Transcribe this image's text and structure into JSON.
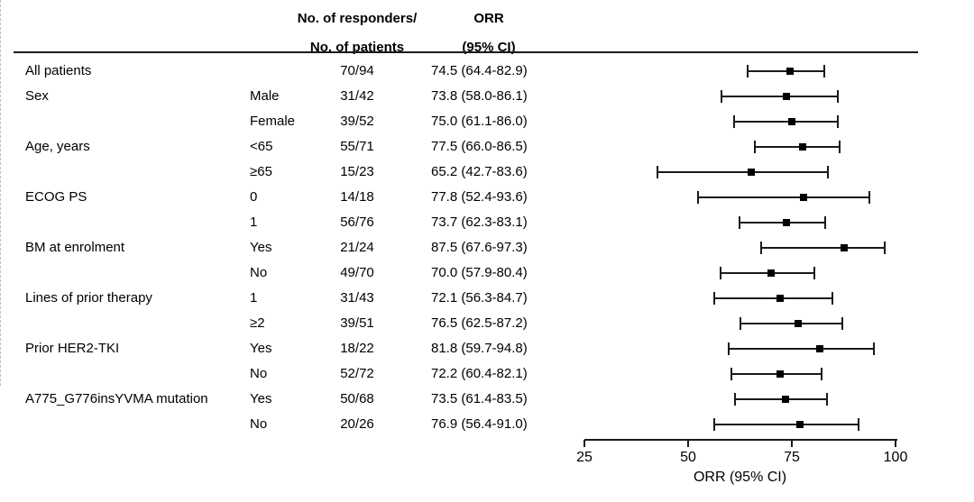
{
  "header": {
    "responders_line1": "No. of responders/",
    "responders_line2": "No. of patients",
    "orr_line1": "ORR",
    "orr_line2": "(95% CI)"
  },
  "axis": {
    "min": 25,
    "max": 100,
    "ticks": [
      25,
      50,
      75,
      100
    ],
    "label": "ORR (95% CI)",
    "ref_value": 74.5
  },
  "colors": {
    "marker": "#000000",
    "line": "#1a1a1a",
    "ref_line": "#bfbfbf"
  },
  "chart_data": {
    "type": "forest",
    "xlabel": "ORR (95% CI)",
    "xlim": [
      25,
      100
    ],
    "ref_line": 74.5,
    "rows": [
      {
        "group": "All patients",
        "level": "",
        "n": "70/94",
        "orr": "74.5 (64.4-82.9)",
        "est": 74.5,
        "lo": 64.4,
        "hi": 82.9
      },
      {
        "group": "Sex",
        "level": "Male",
        "n": "31/42",
        "orr": "73.8 (58.0-86.1)",
        "est": 73.8,
        "lo": 58.0,
        "hi": 86.1
      },
      {
        "group": "",
        "level": "Female",
        "n": "39/52",
        "orr": "75.0 (61.1-86.0)",
        "est": 75.0,
        "lo": 61.1,
        "hi": 86.0
      },
      {
        "group": "Age, years",
        "level": "<65",
        "n": "55/71",
        "orr": "77.5 (66.0-86.5)",
        "est": 77.5,
        "lo": 66.0,
        "hi": 86.5
      },
      {
        "group": "",
        "level": "≥65",
        "n": "15/23",
        "orr": "65.2 (42.7-83.6)",
        "est": 65.2,
        "lo": 42.7,
        "hi": 83.6
      },
      {
        "group": "ECOG PS",
        "level": "0",
        "n": "14/18",
        "orr": "77.8 (52.4-93.6)",
        "est": 77.8,
        "lo": 52.4,
        "hi": 93.6
      },
      {
        "group": "",
        "level": "1",
        "n": "56/76",
        "orr": "73.7 (62.3-83.1)",
        "est": 73.7,
        "lo": 62.3,
        "hi": 83.1
      },
      {
        "group": "BM at enrolment",
        "level": "Yes",
        "n": "21/24",
        "orr": "87.5 (67.6-97.3)",
        "est": 87.5,
        "lo": 67.6,
        "hi": 97.3
      },
      {
        "group": "",
        "level": "No",
        "n": "49/70",
        "orr": "70.0 (57.9-80.4)",
        "est": 70.0,
        "lo": 57.9,
        "hi": 80.4
      },
      {
        "group": "Lines of prior therapy",
        "level": "1",
        "n": "31/43",
        "orr": "72.1 (56.3-84.7)",
        "est": 72.1,
        "lo": 56.3,
        "hi": 84.7
      },
      {
        "group": "",
        "level": "≥2",
        "n": "39/51",
        "orr": "76.5 (62.5-87.2)",
        "est": 76.5,
        "lo": 62.5,
        "hi": 87.2
      },
      {
        "group": "Prior HER2-TKI",
        "level": "Yes",
        "n": "18/22",
        "orr": "81.8 (59.7-94.8)",
        "est": 81.8,
        "lo": 59.7,
        "hi": 94.8
      },
      {
        "group": "",
        "level": "No",
        "n": "52/72",
        "orr": "72.2 (60.4-82.1)",
        "est": 72.2,
        "lo": 60.4,
        "hi": 82.1
      },
      {
        "group": "A775_G776insYVMA mutation",
        "level": "Yes",
        "n": "50/68",
        "orr": "73.5 (61.4-83.5)",
        "est": 73.5,
        "lo": 61.4,
        "hi": 83.5
      },
      {
        "group": "",
        "level": "No",
        "n": "20/26",
        "orr": "76.9 (56.4-91.0)",
        "est": 76.9,
        "lo": 56.4,
        "hi": 91.0
      }
    ]
  }
}
